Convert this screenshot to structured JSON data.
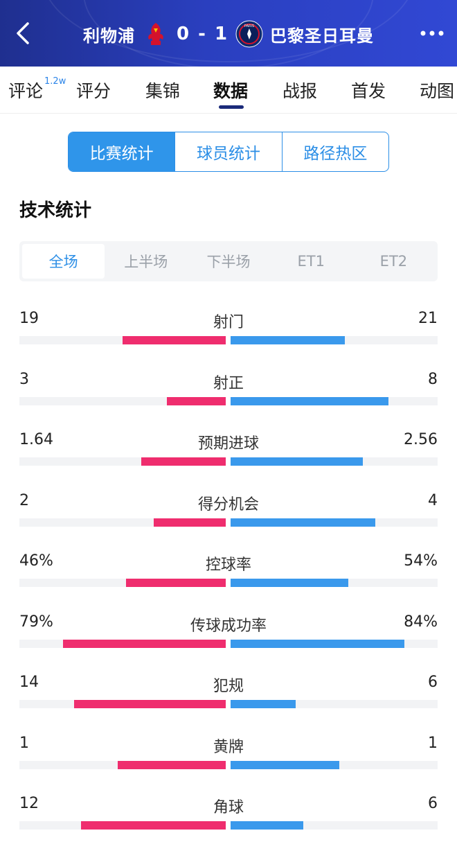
{
  "header": {
    "home_team": "利物浦",
    "away_team": "巴黎圣日耳曼",
    "score": "0 - 1",
    "home_crest_icon": "liverpool-crest-icon",
    "away_crest_icon": "psg-crest-icon",
    "away_crest_text": "PARIS"
  },
  "tabs": [
    {
      "label": "评论",
      "badge": "1.2w"
    },
    {
      "label": "评分"
    },
    {
      "label": "集锦"
    },
    {
      "label": "数据",
      "active": true
    },
    {
      "label": "战报"
    },
    {
      "label": "首发"
    },
    {
      "label": "动图"
    }
  ],
  "segments": [
    "比赛统计",
    "球员统计",
    "路径热区"
  ],
  "section_title": "技术统计",
  "periods": [
    "全场",
    "上半场",
    "下半场",
    "ET1",
    "ET2"
  ],
  "colors": {
    "home": "#ef2d6e",
    "away": "#3a99ec",
    "accent": "#2b8ee6",
    "header": "#2a3fbf"
  },
  "stats": [
    {
      "label": "射门",
      "left": "19",
      "right": "21",
      "lv": 19,
      "rv": 21
    },
    {
      "label": "射正",
      "left": "3",
      "right": "8",
      "lv": 3,
      "rv": 8
    },
    {
      "label": "预期进球",
      "left": "1.64",
      "right": "2.56",
      "lv": 1.64,
      "rv": 2.56
    },
    {
      "label": "得分机会",
      "left": "2",
      "right": "4",
      "lv": 2,
      "rv": 4
    },
    {
      "label": "控球率",
      "left": "46%",
      "right": "54%",
      "lv": 46,
      "rv": 54
    },
    {
      "label": "传球成功率",
      "left": "79%",
      "right": "84%",
      "lv": 79,
      "rv": 84
    },
    {
      "label": "犯规",
      "left": "14",
      "right": "6",
      "lv": 14,
      "rv": 6
    },
    {
      "label": "黄牌",
      "left": "1",
      "right": "1",
      "lv": 1,
      "rv": 1
    },
    {
      "label": "角球",
      "left": "12",
      "right": "6",
      "lv": 12,
      "rv": 6
    }
  ]
}
